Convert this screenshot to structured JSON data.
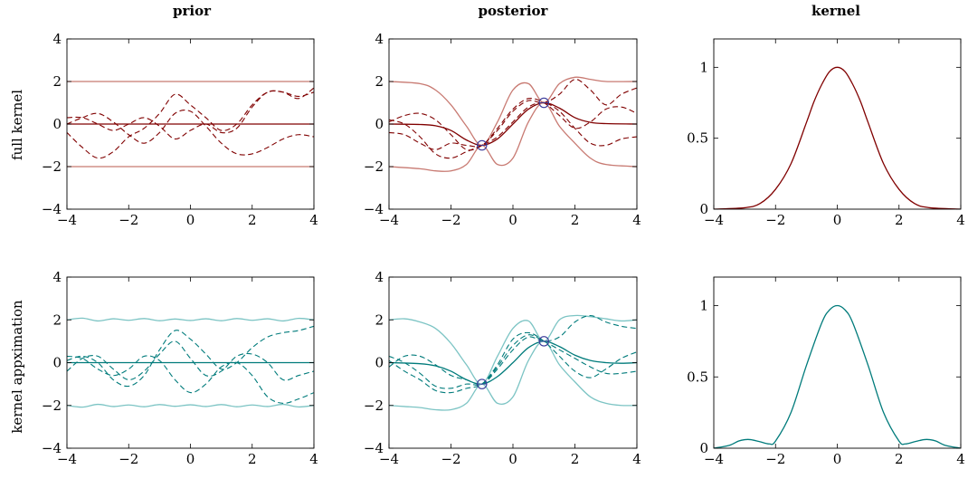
{
  "column_titles": [
    "prior",
    "posterior",
    "kernel"
  ],
  "row_labels": [
    "full kernel",
    "kernel appximation"
  ],
  "colors": {
    "full_dark": "#800000",
    "full_light": "#c87a72",
    "approx_dark": "#007b7b",
    "approx_light": "#7cc4c4",
    "observation_marker": "#3b3b9a"
  },
  "chart_data": [
    {
      "panel": "full-prior",
      "type": "line",
      "xlim": [
        -4,
        4
      ],
      "ylim": [
        -4,
        4
      ],
      "xticks": [
        -4,
        -2,
        0,
        2,
        4
      ],
      "yticks": [
        -4,
        -2,
        0,
        2,
        4
      ],
      "grid": false,
      "series": [
        {
          "style": "mean",
          "x": [
            -4,
            4
          ],
          "values": [
            0,
            0
          ]
        },
        {
          "style": "band",
          "x": [
            -4,
            4
          ],
          "values": [
            2,
            2
          ]
        },
        {
          "style": "band",
          "x": [
            -4,
            4
          ],
          "values": [
            -2,
            -2
          ]
        },
        {
          "style": "sample",
          "x": [
            -4,
            -3.5,
            -3,
            -2.5,
            -2,
            -1.5,
            -1,
            -0.5,
            0,
            0.5,
            1,
            1.5,
            2,
            2.5,
            3,
            3.5,
            4
          ],
          "values": [
            -0.4,
            -1.1,
            -1.6,
            -1.3,
            -0.6,
            -0.2,
            0.5,
            1.4,
            0.9,
            0.3,
            -0.3,
            0.0,
            0.9,
            1.5,
            1.5,
            1.3,
            1.5
          ]
        },
        {
          "style": "sample",
          "x": [
            -4,
            -3.5,
            -3,
            -2.5,
            -2,
            -1.5,
            -1,
            -0.5,
            0,
            0.5,
            1,
            1.5,
            2,
            2.5,
            3,
            3.5,
            4
          ],
          "values": [
            0.0,
            0.3,
            0.5,
            0.1,
            -0.5,
            -0.9,
            -0.4,
            0.5,
            0.6,
            -0.1,
            -0.9,
            -1.4,
            -1.4,
            -1.1,
            -0.7,
            -0.5,
            -0.6
          ]
        },
        {
          "style": "sample",
          "x": [
            -4,
            -3.5,
            -3,
            -2.5,
            -2,
            -1.5,
            -1,
            -0.5,
            0,
            0.5,
            1,
            1.5,
            2,
            2.5,
            3,
            3.5,
            4
          ],
          "values": [
            0.3,
            0.3,
            0.0,
            -0.3,
            0.0,
            0.3,
            -0.1,
            -0.7,
            -0.3,
            0.0,
            -0.4,
            -0.2,
            0.8,
            1.5,
            1.5,
            1.2,
            1.7
          ]
        }
      ]
    },
    {
      "panel": "full-posterior",
      "type": "line",
      "xlim": [
        -4,
        4
      ],
      "ylim": [
        -4,
        4
      ],
      "xticks": [
        -4,
        -2,
        0,
        2,
        4
      ],
      "yticks": [
        -4,
        -2,
        0,
        2,
        4
      ],
      "grid": false,
      "observations": [
        {
          "x": -1,
          "y": -1
        },
        {
          "x": 1,
          "y": 1
        }
      ],
      "series": [
        {
          "style": "mean",
          "x": [
            -4,
            -3,
            -2.5,
            -2,
            -1.5,
            -1,
            -0.5,
            0,
            0.5,
            1,
            1.5,
            2,
            2.5,
            3,
            4
          ],
          "values": [
            0,
            -0.02,
            -0.08,
            -0.3,
            -0.75,
            -1.0,
            -0.7,
            0.0,
            0.7,
            1.0,
            0.75,
            0.3,
            0.08,
            0.02,
            0
          ]
        },
        {
          "style": "band",
          "x": [
            -4,
            -3,
            -2.5,
            -2,
            -1.5,
            -1,
            -0.5,
            0,
            0.5,
            1,
            1.5,
            2,
            2.5,
            3,
            4
          ],
          "values": [
            2.0,
            1.9,
            1.6,
            0.9,
            -0.1,
            -1.0,
            0.1,
            1.6,
            1.9,
            1.0,
            1.9,
            2.2,
            2.1,
            2.0,
            2.0
          ]
        },
        {
          "style": "band",
          "x": [
            -4,
            -3,
            -2.5,
            -2,
            -1.5,
            -1,
            -0.5,
            0,
            0.5,
            1,
            1.5,
            2,
            2.5,
            3,
            4
          ],
          "values": [
            -2.0,
            -2.1,
            -2.2,
            -2.2,
            -1.9,
            -1.0,
            -1.9,
            -1.6,
            0.1,
            1.0,
            -0.1,
            -0.9,
            -1.6,
            -1.9,
            -2.0
          ]
        },
        {
          "style": "sample",
          "x": [
            -4,
            -3.5,
            -3,
            -2.5,
            -2,
            -1.5,
            -1,
            -0.5,
            0,
            0.5,
            1,
            1.5,
            2,
            2.5,
            3,
            3.5,
            4
          ],
          "values": [
            0.1,
            0.4,
            0.5,
            0.2,
            -0.5,
            -1.2,
            -1.0,
            -0.3,
            0.6,
            1.1,
            1.0,
            1.4,
            2.1,
            1.6,
            0.9,
            1.4,
            1.7
          ]
        },
        {
          "style": "sample",
          "x": [
            -4,
            -3.5,
            -3,
            -2.5,
            -2,
            -1.5,
            -1,
            -0.5,
            0,
            0.5,
            1,
            1.5,
            2,
            2.5,
            3,
            3.5,
            4
          ],
          "values": [
            -0.4,
            -0.5,
            -0.9,
            -1.2,
            -0.9,
            -1.0,
            -1.0,
            -0.2,
            0.7,
            1.2,
            1.0,
            0.4,
            -0.2,
            0.1,
            0.7,
            0.8,
            0.5
          ]
        },
        {
          "style": "sample",
          "x": [
            -4,
            -3.5,
            -3,
            -2.5,
            -2,
            -1.5,
            -1,
            -0.5,
            0,
            0.5,
            1,
            1.5,
            2,
            2.5,
            3,
            3.5,
            4
          ],
          "values": [
            0.2,
            0.0,
            -0.6,
            -1.4,
            -1.6,
            -1.3,
            -1.0,
            -0.6,
            0.1,
            0.8,
            1.0,
            0.6,
            -0.2,
            -0.9,
            -1.0,
            -0.7,
            -0.6
          ]
        }
      ]
    },
    {
      "panel": "full-kernel",
      "type": "line",
      "xlim": [
        -4,
        4
      ],
      "ylim": [
        0,
        1.2
      ],
      "xticks": [
        -4,
        -2,
        0,
        2,
        4
      ],
      "yticks": [
        0,
        0.5,
        1
      ],
      "grid": false,
      "series": [
        {
          "style": "kernel",
          "x": [
            -4,
            -3,
            -2.5,
            -2,
            -1.5,
            -1,
            -0.75,
            -0.5,
            -0.25,
            0,
            0.25,
            0.5,
            0.75,
            1,
            1.5,
            2,
            2.5,
            3,
            4
          ],
          "values": [
            0,
            0.01,
            0.04,
            0.14,
            0.32,
            0.61,
            0.76,
            0.88,
            0.97,
            1.0,
            0.97,
            0.88,
            0.76,
            0.61,
            0.32,
            0.14,
            0.04,
            0.01,
            0
          ]
        }
      ]
    },
    {
      "panel": "approx-prior",
      "type": "line",
      "xlim": [
        -4,
        4
      ],
      "ylim": [
        -4,
        4
      ],
      "xticks": [
        -4,
        -2,
        0,
        2,
        4
      ],
      "yticks": [
        -4,
        -2,
        0,
        2,
        4
      ],
      "grid": false,
      "series": [
        {
          "style": "mean",
          "x": [
            -4,
            4
          ],
          "values": [
            0,
            0
          ]
        },
        {
          "style": "band",
          "x": [
            -4,
            -3.5,
            -3,
            -2.5,
            -2,
            -1.5,
            -1,
            -0.5,
            0,
            0.5,
            1,
            1.5,
            2,
            2.5,
            3,
            3.5,
            4
          ],
          "values": [
            2.0,
            2.08,
            1.95,
            2.05,
            1.98,
            2.06,
            1.96,
            2.04,
            1.97,
            2.05,
            1.96,
            2.06,
            1.98,
            2.05,
            1.95,
            2.07,
            2.0
          ]
        },
        {
          "style": "band",
          "x": [
            -4,
            -3.5,
            -3,
            -2.5,
            -2,
            -1.5,
            -1,
            -0.5,
            0,
            0.5,
            1,
            1.5,
            2,
            2.5,
            3,
            3.5,
            4
          ],
          "values": [
            -2.0,
            -2.08,
            -1.95,
            -2.05,
            -1.98,
            -2.06,
            -1.96,
            -2.04,
            -1.97,
            -2.05,
            -1.96,
            -2.06,
            -1.98,
            -2.05,
            -1.95,
            -2.07,
            -2.0
          ]
        },
        {
          "style": "sample",
          "x": [
            -4,
            -3.5,
            -3,
            -2.5,
            -2,
            -1.5,
            -1,
            -0.5,
            0,
            0.5,
            1,
            1.5,
            2,
            2.5,
            3,
            3.5,
            4
          ],
          "values": [
            0.1,
            0.3,
            0.0,
            -0.8,
            -1.1,
            -0.6,
            0.6,
            1.5,
            1.1,
            0.4,
            -0.3,
            0.0,
            0.7,
            1.2,
            1.4,
            1.5,
            1.7
          ]
        },
        {
          "style": "sample",
          "x": [
            -4,
            -3.5,
            -3,
            -2.5,
            -2,
            -1.5,
            -1,
            -0.5,
            0,
            0.5,
            1,
            1.5,
            2,
            2.5,
            3,
            3.5,
            4
          ],
          "values": [
            -0.4,
            0.2,
            0.3,
            -0.3,
            -0.8,
            -0.4,
            0.4,
            1.0,
            0.2,
            -0.6,
            -0.4,
            0.3,
            0.4,
            0.0,
            -0.8,
            -0.6,
            -0.4
          ]
        },
        {
          "style": "sample",
          "x": [
            -4,
            -3.5,
            -3,
            -2.5,
            -2,
            -1.5,
            -1,
            -0.5,
            0,
            0.5,
            1,
            1.5,
            2,
            2.5,
            3,
            3.5,
            4
          ],
          "values": [
            0.3,
            0.2,
            -0.3,
            -0.6,
            -0.3,
            0.3,
            0.1,
            -0.8,
            -1.4,
            -1.0,
            -0.2,
            0.0,
            -0.6,
            -1.6,
            -1.9,
            -1.7,
            -1.4
          ]
        }
      ]
    },
    {
      "panel": "approx-posterior",
      "type": "line",
      "xlim": [
        -4,
        4
      ],
      "ylim": [
        -4,
        4
      ],
      "xticks": [
        -4,
        -2,
        0,
        2,
        4
      ],
      "yticks": [
        -4,
        -2,
        0,
        2,
        4
      ],
      "grid": false,
      "observations": [
        {
          "x": -1,
          "y": -1
        },
        {
          "x": 1,
          "y": 1
        }
      ],
      "series": [
        {
          "style": "mean",
          "x": [
            -4,
            -3,
            -2.5,
            -2,
            -1.5,
            -1,
            -0.5,
            0,
            0.5,
            1,
            1.5,
            2,
            2.5,
            3,
            3.5,
            4
          ],
          "values": [
            0,
            -0.05,
            -0.15,
            -0.4,
            -0.8,
            -1.0,
            -0.65,
            0.0,
            0.7,
            1.0,
            0.75,
            0.35,
            0.1,
            0.0,
            -0.03,
            0
          ]
        },
        {
          "style": "band",
          "x": [
            -4,
            -3.5,
            -3,
            -2.5,
            -2,
            -1.5,
            -1,
            -0.5,
            0,
            0.5,
            1,
            1.5,
            2,
            2.5,
            3,
            3.5,
            4
          ],
          "values": [
            2.0,
            2.05,
            1.9,
            1.6,
            0.9,
            -0.1,
            -1.0,
            0.3,
            1.6,
            1.95,
            1.0,
            2.0,
            2.2,
            2.15,
            2.05,
            1.95,
            2.0
          ]
        },
        {
          "style": "band",
          "x": [
            -4,
            -3.5,
            -3,
            -2.5,
            -2,
            -1.5,
            -1,
            -0.5,
            0,
            0.5,
            1,
            1.5,
            2,
            2.5,
            3,
            3.5,
            4
          ],
          "values": [
            -2.0,
            -2.05,
            -2.1,
            -2.2,
            -2.2,
            -1.9,
            -1.0,
            -1.9,
            -1.6,
            0.1,
            1.0,
            -0.1,
            -0.9,
            -1.6,
            -1.9,
            -2.0,
            -2.0
          ]
        },
        {
          "style": "sample",
          "x": [
            -4,
            -3.5,
            -3,
            -2.5,
            -2,
            -1.5,
            -1,
            -0.5,
            0,
            0.5,
            1,
            1.5,
            2,
            2.5,
            3,
            3.5,
            4
          ],
          "values": [
            -0.2,
            0.3,
            0.3,
            -0.1,
            -0.6,
            -0.8,
            -1.0,
            -0.3,
            0.6,
            1.2,
            1.0,
            1.2,
            1.9,
            2.2,
            1.9,
            1.7,
            1.6
          ]
        },
        {
          "style": "sample",
          "x": [
            -4,
            -3.5,
            -3,
            -2.5,
            -2,
            -1.5,
            -1,
            -0.5,
            0,
            0.5,
            1,
            1.5,
            2,
            2.5,
            3,
            3.5,
            4
          ],
          "values": [
            0.3,
            0.0,
            -0.5,
            -1.1,
            -1.2,
            -1.0,
            -1.0,
            -0.2,
            0.8,
            1.3,
            1.0,
            0.6,
            0.2,
            -0.2,
            -0.5,
            -0.5,
            -0.4
          ]
        },
        {
          "style": "sample",
          "x": [
            -4,
            -3.5,
            -3,
            -2.5,
            -2,
            -1.5,
            -1,
            -0.5,
            0,
            0.5,
            1,
            1.5,
            2,
            2.5,
            3,
            3.5,
            4
          ],
          "values": [
            0.1,
            -0.4,
            -0.8,
            -1.3,
            -1.4,
            -1.2,
            -1.0,
            -0.1,
            1.1,
            1.4,
            1.0,
            0.3,
            -0.4,
            -0.7,
            -0.3,
            0.2,
            0.5
          ]
        }
      ]
    },
    {
      "panel": "approx-kernel",
      "type": "line",
      "xlim": [
        -4,
        4
      ],
      "ylim": [
        0,
        1.2
      ],
      "xticks": [
        -4,
        -2,
        0,
        2,
        4
      ],
      "yticks": [
        0,
        0.5,
        1
      ],
      "grid": false,
      "series": [
        {
          "style": "kernel",
          "x": [
            -4,
            -3.5,
            -3.2,
            -3,
            -2.8,
            -2.5,
            -2.2,
            -2,
            -1.5,
            -1,
            -0.5,
            -0.25,
            0,
            0.25,
            0.5,
            1,
            1.5,
            2,
            2.2,
            2.5,
            2.8,
            3,
            3.2,
            3.5,
            4
          ],
          "values": [
            0.0,
            0.02,
            0.05,
            0.06,
            0.06,
            0.045,
            0.03,
            0.05,
            0.25,
            0.58,
            0.88,
            0.97,
            1.0,
            0.97,
            0.88,
            0.58,
            0.25,
            0.05,
            0.03,
            0.045,
            0.06,
            0.06,
            0.05,
            0.02,
            0.0
          ]
        }
      ]
    }
  ]
}
